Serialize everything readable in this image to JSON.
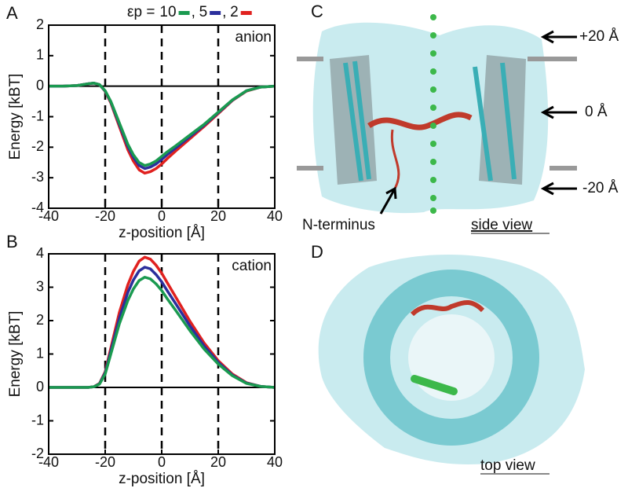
{
  "chart_data": [
    {
      "type": "line",
      "panel_label": "A",
      "annotation": "anion",
      "legend_title": "εp =",
      "xlabel": "z-position [Å]",
      "ylabel": "Energy [kBT]",
      "xlim": [
        -40,
        40
      ],
      "xticks": [
        -40,
        -20,
        0,
        20,
        40
      ],
      "ylim": [
        -4,
        2
      ],
      "yticks": [
        -4,
        -3,
        -2,
        -1,
        0,
        1,
        2
      ],
      "vlines": [
        -20,
        0,
        20
      ],
      "hline": 0,
      "x": [
        -40,
        -35,
        -30,
        -26,
        -24,
        -22,
        -20,
        -18,
        -15,
        -12,
        -10,
        -8,
        -6,
        -4,
        -2,
        0,
        2,
        5,
        10,
        15,
        20,
        25,
        30,
        35,
        40
      ],
      "series": [
        {
          "name": "10",
          "color": "#1a9a50",
          "values": [
            0,
            0,
            0.02,
            0.08,
            0.1,
            0.05,
            -0.15,
            -0.5,
            -1.2,
            -1.9,
            -2.25,
            -2.5,
            -2.6,
            -2.55,
            -2.45,
            -2.3,
            -2.15,
            -1.95,
            -1.6,
            -1.25,
            -0.85,
            -0.45,
            -0.15,
            -0.03,
            0
          ]
        },
        {
          "name": "5",
          "color": "#2b2f9c",
          "values": [
            0,
            0,
            0.02,
            0.08,
            0.1,
            0.05,
            -0.16,
            -0.52,
            -1.25,
            -1.97,
            -2.33,
            -2.6,
            -2.7,
            -2.65,
            -2.55,
            -2.4,
            -2.24,
            -2.02,
            -1.65,
            -1.28,
            -0.87,
            -0.46,
            -0.15,
            -0.03,
            0
          ]
        },
        {
          "name": "2",
          "color": "#e0211f",
          "values": [
            0,
            0,
            0.02,
            0.08,
            0.1,
            0.05,
            -0.17,
            -0.55,
            -1.32,
            -2.08,
            -2.46,
            -2.74,
            -2.85,
            -2.8,
            -2.7,
            -2.55,
            -2.37,
            -2.12,
            -1.72,
            -1.32,
            -0.9,
            -0.47,
            -0.16,
            -0.03,
            0
          ]
        }
      ]
    },
    {
      "type": "line",
      "panel_label": "B",
      "annotation": "cation",
      "xlabel": "z-position [Å]",
      "ylabel": "Energy [kBT]",
      "xlim": [
        -40,
        40
      ],
      "xticks": [
        -40,
        -20,
        0,
        20,
        40
      ],
      "ylim": [
        -2,
        4
      ],
      "yticks": [
        -2,
        -1,
        0,
        1,
        2,
        3,
        4
      ],
      "vlines": [
        -20,
        0,
        20
      ],
      "hline": 0,
      "x": [
        -40,
        -35,
        -30,
        -26,
        -24,
        -22,
        -20,
        -18,
        -15,
        -12,
        -10,
        -8,
        -6,
        -4,
        -2,
        0,
        2,
        5,
        10,
        15,
        20,
        25,
        30,
        35,
        40
      ],
      "series": [
        {
          "color": "#1a9a50",
          "values": [
            0,
            0,
            0,
            0,
            0.02,
            0.1,
            0.4,
            1.0,
            1.9,
            2.6,
            2.95,
            3.2,
            3.3,
            3.25,
            3.1,
            2.9,
            2.65,
            2.3,
            1.7,
            1.15,
            0.7,
            0.35,
            0.12,
            0.03,
            0
          ]
        },
        {
          "color": "#2b2f9c",
          "values": [
            0,
            0,
            0,
            0,
            0.02,
            0.11,
            0.44,
            1.09,
            2.07,
            2.84,
            3.22,
            3.49,
            3.6,
            3.55,
            3.38,
            3.16,
            2.89,
            2.5,
            1.84,
            1.24,
            0.75,
            0.37,
            0.13,
            0.03,
            0
          ]
        },
        {
          "color": "#e0211f",
          "values": [
            0,
            0,
            0,
            0,
            0.02,
            0.12,
            0.47,
            1.18,
            2.24,
            3.07,
            3.48,
            3.78,
            3.9,
            3.84,
            3.66,
            3.42,
            3.13,
            2.7,
            1.98,
            1.33,
            0.8,
            0.4,
            0.14,
            0.03,
            0
          ]
        }
      ]
    }
  ],
  "panels": {
    "C": {
      "label": "C",
      "levels": [
        "+20 Å",
        "0 Å",
        "-20 Å"
      ],
      "pointer": "N-terminus",
      "view": "side view"
    },
    "D": {
      "label": "D",
      "view": "top view"
    }
  }
}
